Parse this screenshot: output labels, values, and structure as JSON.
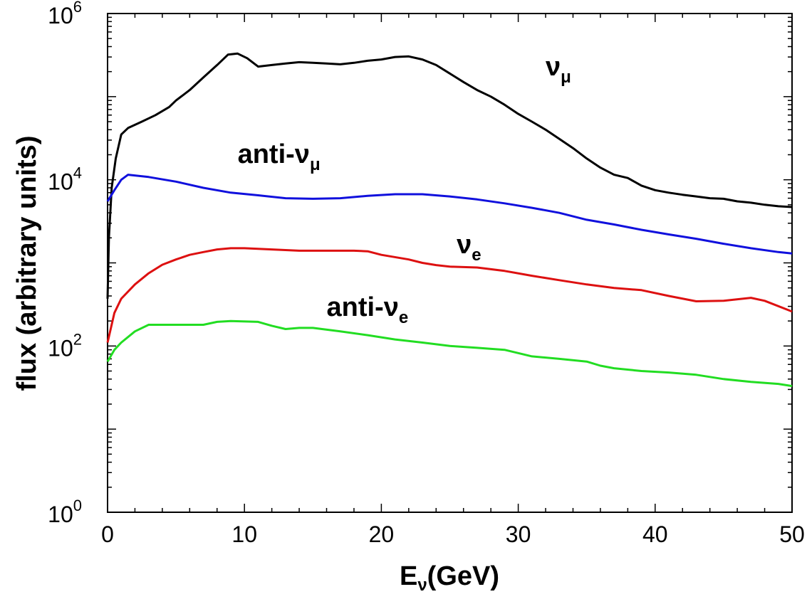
{
  "chart_data": {
    "type": "line",
    "xlabel": {
      "main": "E",
      "sub": "ν",
      "rest": "(GeV)"
    },
    "ylabel": "flux (arbitrary units)",
    "xlim": [
      0,
      50
    ],
    "ylim": [
      1,
      1000000
    ],
    "yscale": "log",
    "grid": false,
    "xticks": [
      {
        "v": 0,
        "label": "0"
      },
      {
        "v": 10,
        "label": "10"
      },
      {
        "v": 20,
        "label": "20"
      },
      {
        "v": 30,
        "label": "30"
      },
      {
        "v": 40,
        "label": "40"
      },
      {
        "v": 50,
        "label": "50"
      }
    ],
    "yticks": [
      {
        "v": 1,
        "base": "10",
        "exp": "0"
      },
      {
        "v": 100,
        "base": "10",
        "exp": "2"
      },
      {
        "v": 10000,
        "base": "10",
        "exp": "4"
      },
      {
        "v": 1000000,
        "base": "10",
        "exp": "6"
      }
    ],
    "series": [
      {
        "label": {
          "pre": "",
          "main": "ν",
          "sub": "μ",
          "x": 32,
          "y": 180000
        },
        "color": "#000000",
        "points": [
          [
            0,
            370
          ],
          [
            0.1,
            2000
          ],
          [
            0.3,
            8000
          ],
          [
            0.6,
            18000
          ],
          [
            1,
            35000
          ],
          [
            1.5,
            42000
          ],
          [
            2.5,
            50000
          ],
          [
            3.5,
            60000
          ],
          [
            4.5,
            75000
          ],
          [
            5,
            90000
          ],
          [
            6,
            120000
          ],
          [
            7,
            170000
          ],
          [
            8,
            240000
          ],
          [
            8.8,
            320000
          ],
          [
            9.5,
            330000
          ],
          [
            10.2,
            290000
          ],
          [
            11,
            230000
          ],
          [
            12,
            240000
          ],
          [
            13,
            250000
          ],
          [
            14,
            260000
          ],
          [
            15,
            255000
          ],
          [
            16,
            250000
          ],
          [
            17,
            245000
          ],
          [
            18,
            255000
          ],
          [
            19,
            270000
          ],
          [
            20,
            280000
          ],
          [
            21,
            300000
          ],
          [
            22,
            305000
          ],
          [
            23,
            280000
          ],
          [
            24,
            240000
          ],
          [
            25,
            190000
          ],
          [
            26,
            150000
          ],
          [
            27,
            120000
          ],
          [
            28,
            100000
          ],
          [
            29,
            80000
          ],
          [
            30,
            62000
          ],
          [
            31,
            50000
          ],
          [
            32,
            40000
          ],
          [
            33,
            31000
          ],
          [
            34,
            24000
          ],
          [
            35,
            18000
          ],
          [
            36,
            14000
          ],
          [
            37,
            11500
          ],
          [
            38,
            10500
          ],
          [
            39,
            8500
          ],
          [
            40,
            7500
          ],
          [
            41,
            7000
          ],
          [
            42,
            6600
          ],
          [
            43,
            6300
          ],
          [
            44,
            6000
          ],
          [
            45,
            5900
          ],
          [
            46,
            5500
          ],
          [
            47,
            5300
          ],
          [
            48,
            5000
          ],
          [
            49,
            4800
          ],
          [
            50,
            4700
          ]
        ]
      },
      {
        "label": {
          "pre": "anti-",
          "main": "ν",
          "sub": "μ",
          "x": 9.5,
          "y": 16000
        },
        "color": "#1010dd",
        "points": [
          [
            0,
            5500
          ],
          [
            0.5,
            7500
          ],
          [
            1,
            10000
          ],
          [
            1.5,
            11500
          ],
          [
            3,
            10800
          ],
          [
            5,
            9500
          ],
          [
            7,
            8000
          ],
          [
            9,
            7000
          ],
          [
            11,
            6500
          ],
          [
            13,
            6000
          ],
          [
            15,
            5900
          ],
          [
            17,
            6000
          ],
          [
            19,
            6400
          ],
          [
            21,
            6700
          ],
          [
            23,
            6700
          ],
          [
            25,
            6300
          ],
          [
            27,
            5800
          ],
          [
            29,
            5200
          ],
          [
            31,
            4600
          ],
          [
            33,
            4000
          ],
          [
            35,
            3300
          ],
          [
            37,
            2900
          ],
          [
            39,
            2500
          ],
          [
            41,
            2200
          ],
          [
            43,
            1950
          ],
          [
            45,
            1700
          ],
          [
            47,
            1500
          ],
          [
            49,
            1350
          ],
          [
            50,
            1300
          ]
        ]
      },
      {
        "label": {
          "pre": "",
          "main": "ν",
          "sub": "e",
          "x": 25.5,
          "y": 1300
        },
        "color": "#dd1010",
        "points": [
          [
            0,
            110
          ],
          [
            0.5,
            250
          ],
          [
            1,
            370
          ],
          [
            2,
            550
          ],
          [
            3,
            750
          ],
          [
            4,
            950
          ],
          [
            5,
            1100
          ],
          [
            6,
            1250
          ],
          [
            7,
            1350
          ],
          [
            8,
            1450
          ],
          [
            9,
            1500
          ],
          [
            10,
            1500
          ],
          [
            12,
            1450
          ],
          [
            14,
            1400
          ],
          [
            16,
            1400
          ],
          [
            18,
            1400
          ],
          [
            19,
            1380
          ],
          [
            20,
            1250
          ],
          [
            22,
            1100
          ],
          [
            23,
            1000
          ],
          [
            24,
            940
          ],
          [
            25,
            900
          ],
          [
            27,
            880
          ],
          [
            29,
            800
          ],
          [
            31,
            700
          ],
          [
            33,
            620
          ],
          [
            35,
            550
          ],
          [
            37,
            500
          ],
          [
            39,
            470
          ],
          [
            41,
            400
          ],
          [
            43,
            345
          ],
          [
            45,
            350
          ],
          [
            47,
            380
          ],
          [
            48,
            350
          ],
          [
            50,
            260
          ]
        ]
      },
      {
        "label": {
          "pre": "anti-",
          "main": "ν",
          "sub": "e",
          "x": 16,
          "y": 230
        },
        "color": "#22dd22",
        "points": [
          [
            0,
            65
          ],
          [
            0.5,
            90
          ],
          [
            1,
            110
          ],
          [
            2,
            150
          ],
          [
            3,
            180
          ],
          [
            5,
            180
          ],
          [
            7,
            180
          ],
          [
            8,
            195
          ],
          [
            9,
            200
          ],
          [
            11,
            195
          ],
          [
            12,
            175
          ],
          [
            13,
            160
          ],
          [
            14,
            165
          ],
          [
            15,
            165
          ],
          [
            17,
            150
          ],
          [
            19,
            135
          ],
          [
            21,
            120
          ],
          [
            23,
            110
          ],
          [
            25,
            100
          ],
          [
            27,
            95
          ],
          [
            29,
            90
          ],
          [
            31,
            75
          ],
          [
            33,
            70
          ],
          [
            35,
            65
          ],
          [
            36,
            58
          ],
          [
            37,
            54
          ],
          [
            39,
            50
          ],
          [
            41,
            48
          ],
          [
            43,
            45
          ],
          [
            45,
            40
          ],
          [
            47,
            37
          ],
          [
            49,
            35
          ],
          [
            50,
            33
          ]
        ]
      }
    ]
  }
}
